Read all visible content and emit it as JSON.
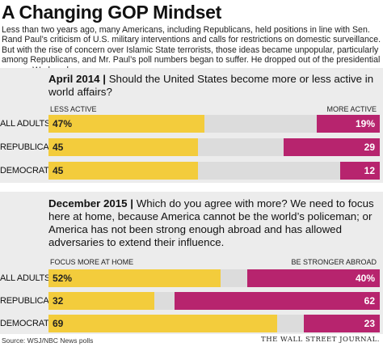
{
  "title": "A Changing GOP Mindset",
  "intro": "Less than two years ago, many Americans, including Republicans, held positions in line with Sen. Rand Paul’s criticism of U.S. military interventions and calls for restrictions on domestic surveillance. But with the rise of concern over Islamic State terrorists, those ideas became unpopular, particularly among Republicans, and Mr. Paul’s poll numbers began to suffer. He dropped out of the presidential race on Wednesday.",
  "source": "Source: WSJ/NBC News polls",
  "credit": "THE WALL STREET JOURNAL.",
  "colors": {
    "left": "#f3cc3c",
    "right": "#b7246e",
    "track": "#dcdcdc",
    "panel": "#ececec"
  },
  "chart_data": [
    {
      "type": "bar",
      "orientation": "horizontal-stacked",
      "title": "April 2014",
      "question": "Should the United States become more or less active in world affairs?",
      "left_label": "LESS ACTIVE",
      "right_label": "MORE ACTIVE",
      "categories": [
        "ALL ADULTS",
        "REPUBLICANS",
        "DEMOCRATS"
      ],
      "series": [
        {
          "name": "LESS ACTIVE",
          "values": [
            47,
            45,
            45
          ],
          "labels": [
            "47%",
            "45",
            "45"
          ]
        },
        {
          "name": "MORE ACTIVE",
          "values": [
            19,
            29,
            12
          ],
          "labels": [
            "19%",
            "29",
            "12"
          ]
        }
      ],
      "xlim": [
        0,
        100
      ]
    },
    {
      "type": "bar",
      "orientation": "horizontal-stacked",
      "title": "December 2015",
      "question": "Which do you agree with more? We need to focus here at home, because America cannot be the world’s policeman; or America has not been strong enough abroad and has allowed adversaries to extend their influence.",
      "left_label": "FOCUS MORE AT HOME",
      "right_label": "BE STRONGER ABROAD",
      "categories": [
        "ALL ADULTS",
        "REPUBLICANS",
        "DEMOCRATS"
      ],
      "series": [
        {
          "name": "FOCUS MORE AT HOME",
          "values": [
            52,
            32,
            69
          ],
          "labels": [
            "52%",
            "32",
            "69"
          ]
        },
        {
          "name": "BE STRONGER ABROAD",
          "values": [
            40,
            62,
            23
          ],
          "labels": [
            "40%",
            "62",
            "23"
          ]
        }
      ],
      "xlim": [
        0,
        100
      ]
    }
  ]
}
